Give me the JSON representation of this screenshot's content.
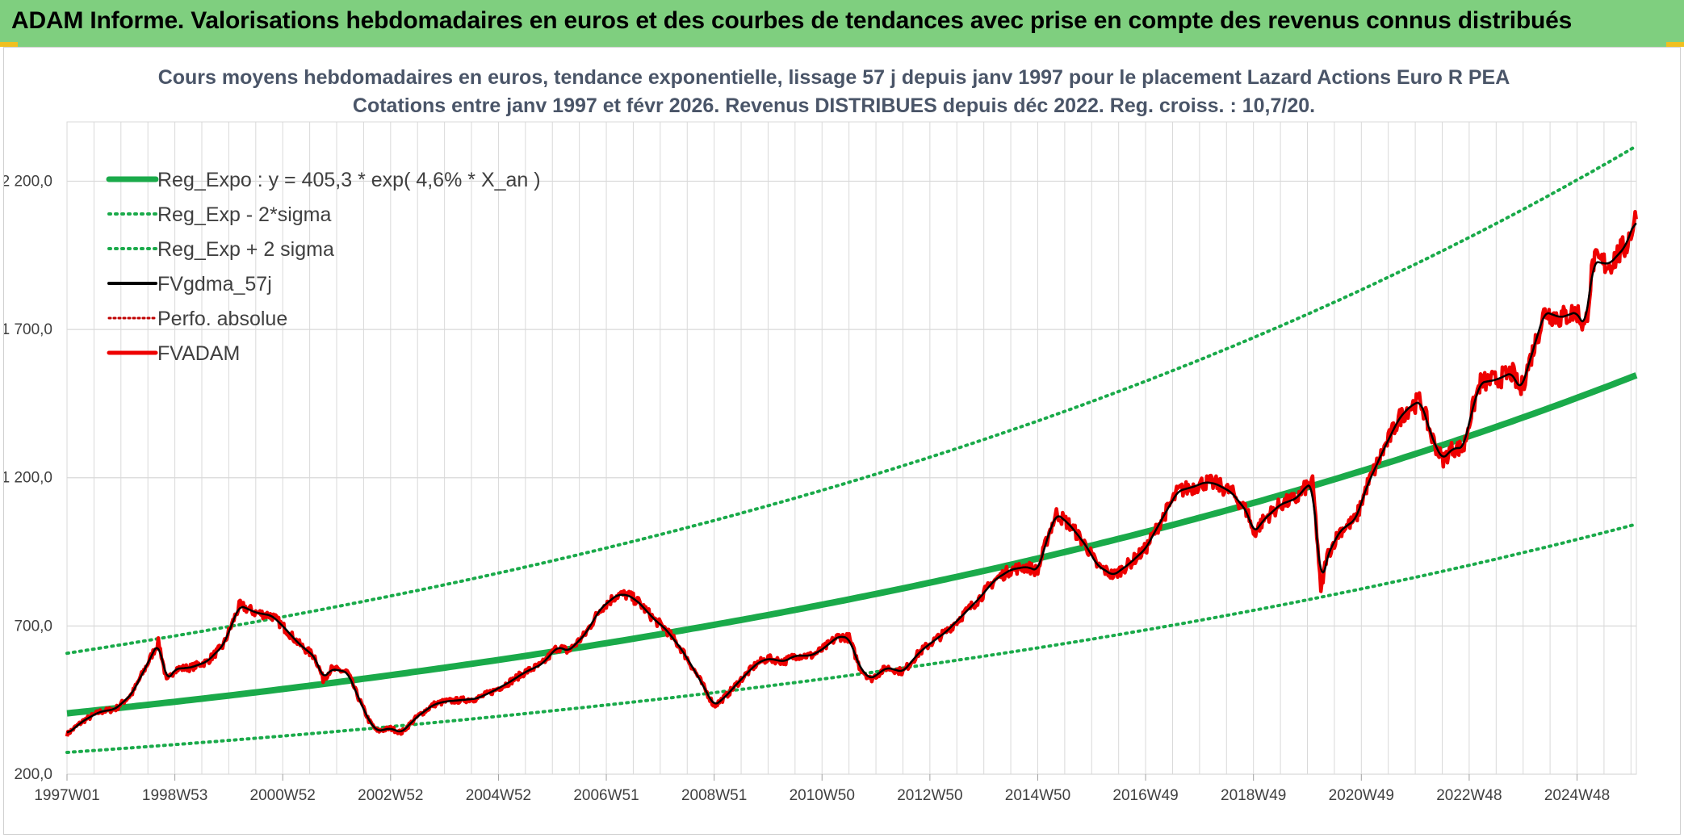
{
  "banner": {
    "title": "ADAM Informe. Valorisations hebdomadaires en euros et des courbes de tendances avec prise en compte des revenus connus distribués"
  },
  "colors": {
    "banner_bg": "#7fcf7f",
    "trend": "#1aaa4a",
    "band": "#1aaa4a",
    "smooth": "#000000",
    "perfo": "#c00000",
    "price": "#ee0000",
    "grid": "#d9d9d9"
  },
  "chart_data": {
    "type": "line",
    "title": "Cours moyens hebdomadaires en euros, tendance exponentielle, lissage 57 j depuis janv 1997 pour le placement Lazard Actions Euro R PEA",
    "subtitle": "Cotations entre janv 1997 et févr 2026. Revenus DISTRIBUES depuis déc 2022. Reg. croiss. : 10,7/20.",
    "x_range": [
      1997.0,
      2026.1
    ],
    "x_ticks": [
      {
        "label": "1997W01",
        "x": 1997.0
      },
      {
        "label": "1998W53",
        "x": 1999.0
      },
      {
        "label": "2000W52",
        "x": 2001.0
      },
      {
        "label": "2002W52",
        "x": 2003.0
      },
      {
        "label": "2004W52",
        "x": 2005.0
      },
      {
        "label": "2006W51",
        "x": 2007.0
      },
      {
        "label": "2008W51",
        "x": 2009.0
      },
      {
        "label": "2010W50",
        "x": 2011.0
      },
      {
        "label": "2012W50",
        "x": 2013.0
      },
      {
        "label": "2014W50",
        "x": 2015.0
      },
      {
        "label": "2016W49",
        "x": 2017.0
      },
      {
        "label": "2018W49",
        "x": 2019.0
      },
      {
        "label": "2020W49",
        "x": 2021.0
      },
      {
        "label": "2022W48",
        "x": 2023.0
      },
      {
        "label": "2024W48",
        "x": 2025.0
      }
    ],
    "y_range": [
      200,
      2400
    ],
    "y_ticks": [
      {
        "label": "200,0",
        "v": 200
      },
      {
        "label": "700,0",
        "v": 700
      },
      {
        "label": "1 200,0",
        "v": 1200
      },
      {
        "label": "1 700,0",
        "v": 1700
      },
      {
        "label": "2 200,0",
        "v": 2200
      }
    ],
    "grid": true,
    "legend_position": "top-left",
    "trend": {
      "a": 405.3,
      "rate": 0.046,
      "x0": 1997.0,
      "upper_factor": 1.5,
      "lower_factor": 0.675
    },
    "series": [
      {
        "name": "Reg_Expo : y = 405,3 * exp( 4,6% *  X_an )",
        "style": "thick",
        "key": "trend"
      },
      {
        "name": "Reg_Exp - 2*sigma",
        "style": "dotted",
        "key": "lower"
      },
      {
        "name": "Reg_Exp + 2 sigma",
        "style": "dotted",
        "key": "upper"
      },
      {
        "name": "FVgdma_57j",
        "style": "solid-black",
        "key": "smooth"
      },
      {
        "name": "Perfo. absolue",
        "style": "dotted-darkred",
        "key": "perfo"
      },
      {
        "name": "FVADAM",
        "style": "thick-red",
        "key": "price"
      }
    ],
    "price_points": [
      [
        1997.0,
        335
      ],
      [
        1997.3,
        380
      ],
      [
        1997.6,
        410
      ],
      [
        1997.9,
        420
      ],
      [
        1998.2,
        470
      ],
      [
        1998.5,
        575
      ],
      [
        1998.7,
        648
      ],
      [
        1998.85,
        510
      ],
      [
        1999.0,
        555
      ],
      [
        1999.3,
        560
      ],
      [
        1999.6,
        580
      ],
      [
        1999.9,
        635
      ],
      [
        2000.2,
        770
      ],
      [
        2000.5,
        745
      ],
      [
        2000.8,
        735
      ],
      [
        2001.0,
        700
      ],
      [
        2001.3,
        640
      ],
      [
        2001.6,
        595
      ],
      [
        2001.75,
        520
      ],
      [
        2001.9,
        555
      ],
      [
        2002.2,
        545
      ],
      [
        2002.4,
        460
      ],
      [
        2002.6,
        380
      ],
      [
        2002.75,
        345
      ],
      [
        2003.0,
        355
      ],
      [
        2003.2,
        340
      ],
      [
        2003.5,
        395
      ],
      [
        2003.8,
        435
      ],
      [
        2004.0,
        445
      ],
      [
        2004.3,
        450
      ],
      [
        2004.6,
        455
      ],
      [
        2004.9,
        480
      ],
      [
        2005.2,
        510
      ],
      [
        2005.5,
        545
      ],
      [
        2005.8,
        570
      ],
      [
        2006.1,
        630
      ],
      [
        2006.3,
        615
      ],
      [
        2006.6,
        670
      ],
      [
        2006.9,
        760
      ],
      [
        2007.2,
        805
      ],
      [
        2007.4,
        805
      ],
      [
        2007.6,
        780
      ],
      [
        2007.9,
        720
      ],
      [
        2008.1,
        690
      ],
      [
        2008.4,
        620
      ],
      [
        2008.7,
        530
      ],
      [
        2009.0,
        430
      ],
      [
        2009.2,
        460
      ],
      [
        2009.5,
        520
      ],
      [
        2009.8,
        575
      ],
      [
        2010.0,
        590
      ],
      [
        2010.3,
        580
      ],
      [
        2010.5,
        600
      ],
      [
        2010.8,
        600
      ],
      [
        2011.0,
        620
      ],
      [
        2011.3,
        665
      ],
      [
        2011.5,
        660
      ],
      [
        2011.7,
        560
      ],
      [
        2011.9,
        520
      ],
      [
        2012.2,
        560
      ],
      [
        2012.5,
        545
      ],
      [
        2012.8,
        610
      ],
      [
        2013.0,
        640
      ],
      [
        2013.3,
        680
      ],
      [
        2013.6,
        735
      ],
      [
        2013.9,
        790
      ],
      [
        2014.2,
        855
      ],
      [
        2014.5,
        890
      ],
      [
        2014.8,
        900
      ],
      [
        2015.0,
        885
      ],
      [
        2015.2,
        1010
      ],
      [
        2015.35,
        1080
      ],
      [
        2015.6,
        1040
      ],
      [
        2015.9,
        970
      ],
      [
        2016.1,
        905
      ],
      [
        2016.4,
        870
      ],
      [
        2016.7,
        910
      ],
      [
        2017.0,
        960
      ],
      [
        2017.3,
        1060
      ],
      [
        2017.6,
        1155
      ],
      [
        2017.9,
        1170
      ],
      [
        2018.1,
        1185
      ],
      [
        2018.3,
        1180
      ],
      [
        2018.6,
        1150
      ],
      [
        2018.9,
        1080
      ],
      [
        2019.0,
        1010
      ],
      [
        2019.2,
        1060
      ],
      [
        2019.5,
        1110
      ],
      [
        2019.8,
        1130
      ],
      [
        2020.0,
        1175
      ],
      [
        2020.1,
        1180
      ],
      [
        2020.2,
        950
      ],
      [
        2020.25,
        810
      ],
      [
        2020.35,
        930
      ],
      [
        2020.6,
        1020
      ],
      [
        2020.9,
        1060
      ],
      [
        2021.1,
        1170
      ],
      [
        2021.4,
        1290
      ],
      [
        2021.7,
        1400
      ],
      [
        2021.9,
        1440
      ],
      [
        2022.1,
        1460
      ],
      [
        2022.3,
        1340
      ],
      [
        2022.5,
        1260
      ],
      [
        2022.7,
        1300
      ],
      [
        2022.9,
        1300
      ],
      [
        2023.0,
        1390
      ],
      [
        2023.2,
        1520
      ],
      [
        2023.5,
        1530
      ],
      [
        2023.8,
        1555
      ],
      [
        2023.95,
        1490
      ],
      [
        2024.2,
        1640
      ],
      [
        2024.4,
        1760
      ],
      [
        2024.7,
        1740
      ],
      [
        2025.0,
        1760
      ],
      [
        2025.15,
        1700
      ],
      [
        2025.3,
        1930
      ],
      [
        2025.6,
        1920
      ],
      [
        2025.9,
        1980
      ],
      [
        2026.1,
        2080
      ]
    ]
  }
}
